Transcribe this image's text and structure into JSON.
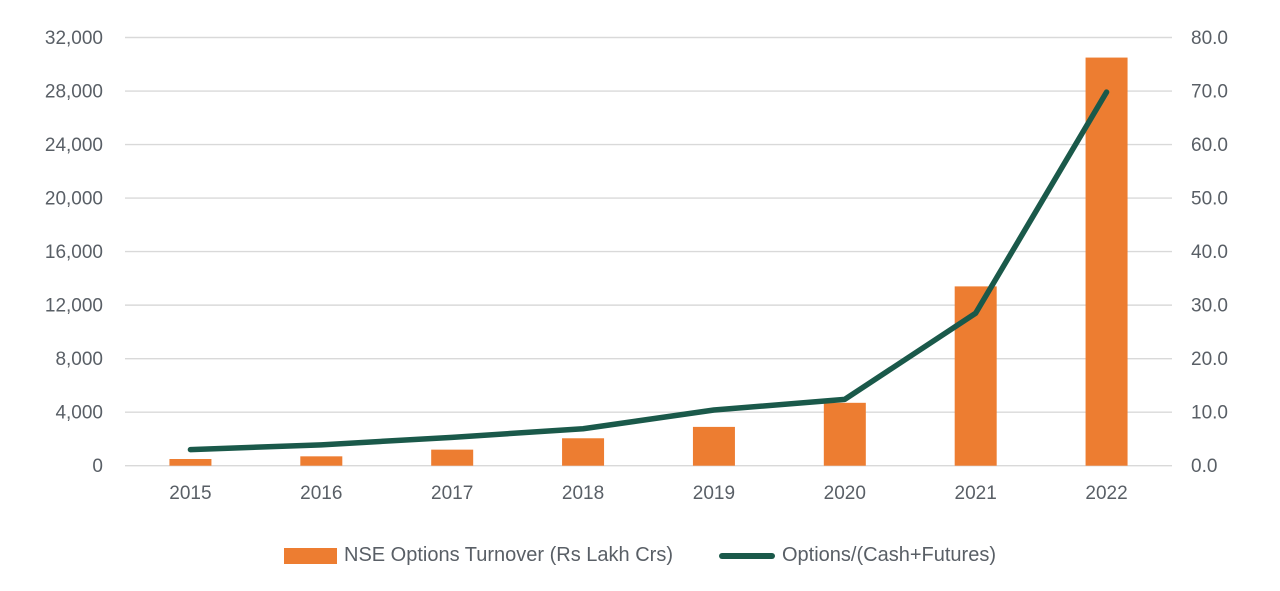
{
  "chart_data": {
    "type": "combo",
    "title": "",
    "categories": [
      "2015",
      "2016",
      "2017",
      "2018",
      "2019",
      "2020",
      "2021",
      "2022"
    ],
    "series": [
      {
        "name": "NSE Options Turnover (Rs Lakh Crs)",
        "type": "bar",
        "axis": "left",
        "color": "#ED7D31",
        "values": [
          500,
          700,
          1200,
          2050,
          2900,
          4700,
          13400,
          30500
        ]
      },
      {
        "name": "Options/(Cash+Futures)",
        "type": "line",
        "axis": "right",
        "color": "#1A594A",
        "values": [
          3.0,
          3.9,
          5.3,
          6.9,
          10.4,
          12.4,
          28.5,
          69.8
        ]
      }
    ],
    "left_axis": {
      "min": 0,
      "max": 32000,
      "step": 4000,
      "tick_labels": [
        "0",
        "4,000",
        "8,000",
        "12,000",
        "16,000",
        "20,000",
        "24,000",
        "28,000",
        "32,000"
      ]
    },
    "right_axis": {
      "min": 0,
      "max": 80,
      "step": 10,
      "tick_labels": [
        "0.0",
        "10.0",
        "20.0",
        "30.0",
        "40.0",
        "50.0",
        "60.0",
        "70.0",
        "80.0"
      ]
    },
    "grid": true,
    "gridline_color": "#D9D9D9",
    "axis_label_color": "#595f66",
    "legend_position": "bottom"
  },
  "legend": {
    "bar_label": "NSE Options Turnover (Rs Lakh Crs)",
    "line_label": "Options/(Cash+Futures)"
  },
  "colors": {
    "bar": "#ED7D31",
    "line": "#1A594A",
    "grid": "#D9D9D9",
    "text": "#595f66"
  }
}
